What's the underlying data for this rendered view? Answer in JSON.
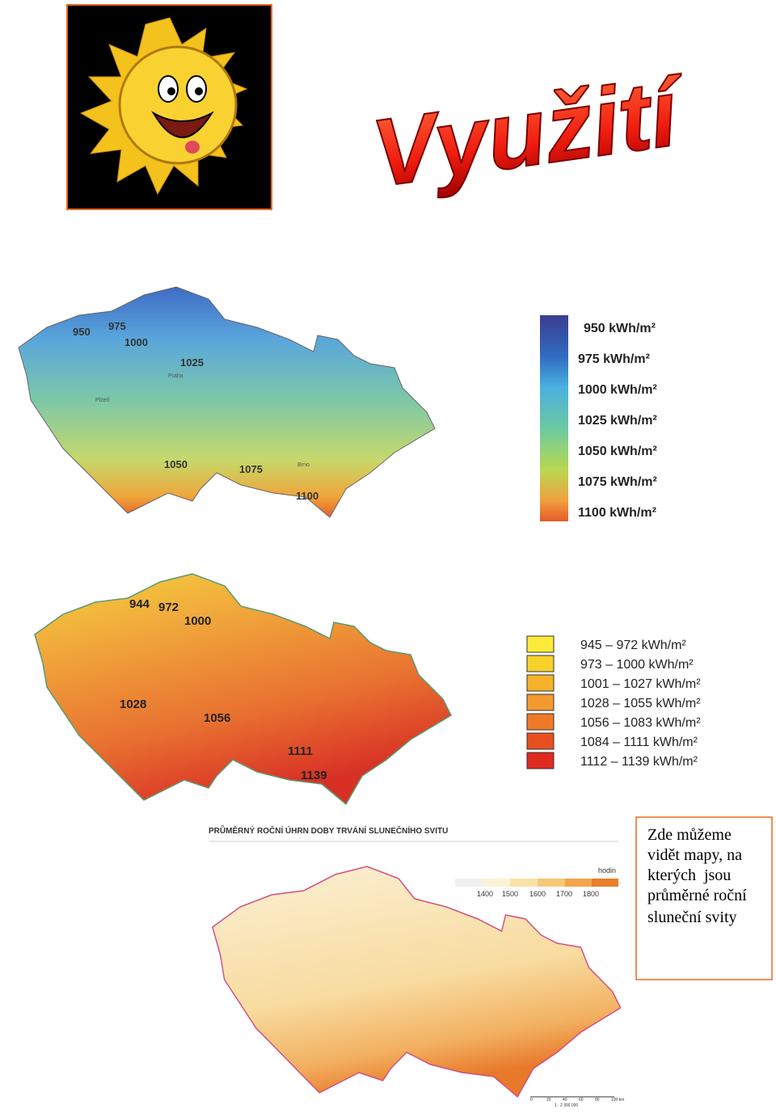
{
  "header": {
    "title": "Využití"
  },
  "map1": {
    "labels": [
      "950",
      "975",
      "1000",
      "1025",
      "1050",
      "1075",
      "1100",
      "Praha",
      "Plzeň",
      "Brno"
    ],
    "legend": [
      "950 kWh/m²",
      "975 kWh/m²",
      "1000 kWh/m²",
      "1025 kWh/m²",
      "1050 kWh/m²",
      "1075 kWh/m²",
      "1100 kWh/m²"
    ]
  },
  "map2": {
    "labels": [
      "944",
      "972",
      "1000",
      "1028",
      "1056",
      "1111",
      "1139"
    ],
    "legend": [
      "945 – 972 kWh/m²",
      "973 – 1000 kWh/m²",
      "1001 – 1027 kWh/m²",
      "1028 – 1055 kWh/m²",
      "1056 – 1083 kWh/m²",
      "1084 – 1111 kWh/m²",
      "1112 – 1139 kWh/m²"
    ]
  },
  "map3": {
    "title": "PRŮMĚRNÝ ROČNÍ ÚHRN DOBY TRVÁNÍ SLUNEČNÍHO SVITU",
    "legend_title": "hodin",
    "legend_ticks": [
      "1400",
      "1500",
      "1600",
      "1700",
      "1800"
    ],
    "scale": [
      "0",
      "20",
      "40",
      "60",
      "80",
      "100 km",
      "1 : 2 300 000"
    ]
  },
  "note": {
    "lines": [
      "Zde můžeme",
      "vidět mapy, na",
      "kterých  jsou",
      "průměrné roční",
      "sluneční svity"
    ]
  }
}
